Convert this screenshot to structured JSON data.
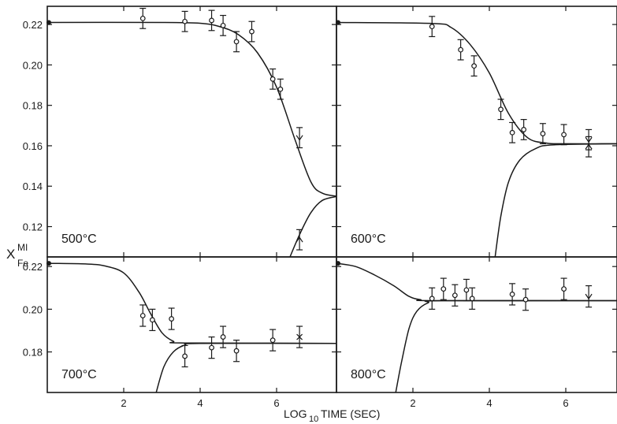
{
  "chart_data": {
    "type": "scatter",
    "xlabel": "LOG",
    "xlabel_sub": "10",
    "xlabel_rest": "TIME (SEC)",
    "ylabel": "X",
    "ylabel_sup": "MI",
    "ylabel_sub": "Fe",
    "xlim": [
      0,
      7.6
    ],
    "x_ticks": [
      2,
      4,
      6
    ],
    "x_tick_labels": [
      "2",
      "4",
      "6"
    ],
    "panels": [
      {
        "label": "500°C",
        "ylim": [
          0.105,
          0.229
        ],
        "y_ticks": [
          0.22,
          0.2,
          0.18,
          0.16,
          0.14,
          0.12
        ],
        "y_tick_labels": [
          "0.22",
          "0.20",
          "0.18",
          "0.16",
          "0.14",
          "0.12"
        ],
        "start_value": 0.221,
        "equilibrium": 0.135,
        "decay_curve": [
          [
            0,
            0.221
          ],
          [
            3,
            0.221
          ],
          [
            4,
            0.2206
          ],
          [
            4.5,
            0.219
          ],
          [
            5,
            0.215
          ],
          [
            5.5,
            0.206
          ],
          [
            6,
            0.189
          ],
          [
            6.5,
            0.162
          ],
          [
            6.9,
            0.142
          ],
          [
            7.2,
            0.1365
          ],
          [
            7.6,
            0.135
          ]
        ],
        "rise_curve": [
          [
            6.35,
            0.105
          ],
          [
            6.6,
            0.116
          ],
          [
            6.9,
            0.127
          ],
          [
            7.2,
            0.133
          ],
          [
            7.6,
            0.135
          ]
        ],
        "points": [
          {
            "x": 2.5,
            "y": 0.223,
            "err": 0.005,
            "marker": "circle"
          },
          {
            "x": 3.6,
            "y": 0.2215,
            "err": 0.005,
            "marker": "circle"
          },
          {
            "x": 4.3,
            "y": 0.222,
            "err": 0.005,
            "marker": "circle"
          },
          {
            "x": 4.6,
            "y": 0.2195,
            "err": 0.005,
            "marker": "circle"
          },
          {
            "x": 4.95,
            "y": 0.2115,
            "err": 0.005,
            "marker": "circle"
          },
          {
            "x": 5.35,
            "y": 0.2165,
            "err": 0.005,
            "marker": "circle"
          },
          {
            "x": 5.9,
            "y": 0.193,
            "err": 0.005,
            "marker": "circle"
          },
          {
            "x": 6.1,
            "y": 0.188,
            "err": 0.005,
            "marker": "circle"
          },
          {
            "x": 6.6,
            "y": 0.164,
            "err": 0.005,
            "marker": "down"
          },
          {
            "x": 6.6,
            "y": 0.1135,
            "err": 0.005,
            "marker": "up"
          }
        ]
      },
      {
        "label": "600°C",
        "ylim": [
          0.105,
          0.229
        ],
        "y_ticks": [
          0.22,
          0.2,
          0.18,
          0.16,
          0.14,
          0.12
        ],
        "y_tick_labels": [],
        "start_value": 0.221,
        "equilibrium": 0.161,
        "decay_curve": [
          [
            0,
            0.221
          ],
          [
            2.5,
            0.2205
          ],
          [
            3,
            0.2185
          ],
          [
            3.5,
            0.21
          ],
          [
            4,
            0.196
          ],
          [
            4.5,
            0.176
          ],
          [
            5,
            0.164
          ],
          [
            5.5,
            0.1613
          ],
          [
            6,
            0.161
          ],
          [
            7.6,
            0.161
          ]
        ],
        "rise_curve": [
          [
            4.15,
            0.105
          ],
          [
            4.3,
            0.125
          ],
          [
            4.5,
            0.142
          ],
          [
            4.8,
            0.153
          ],
          [
            5.2,
            0.1585
          ],
          [
            5.7,
            0.1605
          ],
          [
            7.6,
            0.161
          ]
        ],
        "points": [
          {
            "x": 2.5,
            "y": 0.219,
            "err": 0.005,
            "marker": "circle"
          },
          {
            "x": 3.25,
            "y": 0.2075,
            "err": 0.005,
            "marker": "circle"
          },
          {
            "x": 3.6,
            "y": 0.1995,
            "err": 0.005,
            "marker": "circle"
          },
          {
            "x": 4.3,
            "y": 0.178,
            "err": 0.005,
            "marker": "circle"
          },
          {
            "x": 4.6,
            "y": 0.1665,
            "err": 0.005,
            "marker": "circle"
          },
          {
            "x": 4.9,
            "y": 0.168,
            "err": 0.005,
            "marker": "circle"
          },
          {
            "x": 5.4,
            "y": 0.166,
            "err": 0.005,
            "marker": "circle"
          },
          {
            "x": 5.95,
            "y": 0.1655,
            "err": 0.005,
            "marker": "circle"
          },
          {
            "x": 6.6,
            "y": 0.163,
            "err": 0.005,
            "marker": "down"
          },
          {
            "x": 6.6,
            "y": 0.1595,
            "err": 0.005,
            "marker": "up"
          }
        ]
      },
      {
        "label": "700°C",
        "ylim": [
          0.161,
          0.2245
        ],
        "y_ticks": [
          0.22,
          0.2,
          0.18
        ],
        "y_tick_labels": [
          "0.22",
          "0.20",
          "0.18"
        ],
        "start_value": 0.2215,
        "equilibrium": 0.184,
        "decay_curve": [
          [
            0,
            0.2215
          ],
          [
            1,
            0.2212
          ],
          [
            1.5,
            0.2203
          ],
          [
            2,
            0.217
          ],
          [
            2.4,
            0.208
          ],
          [
            2.7,
            0.198
          ],
          [
            3,
            0.189
          ],
          [
            3.3,
            0.185
          ],
          [
            3.6,
            0.1842
          ],
          [
            7.6,
            0.184
          ]
        ],
        "rise_curve": [
          [
            2.85,
            0.161
          ],
          [
            3.05,
            0.173
          ],
          [
            3.3,
            0.18
          ],
          [
            3.6,
            0.1832
          ],
          [
            4,
            0.184
          ],
          [
            7.6,
            0.184
          ]
        ],
        "points": [
          {
            "x": 2.5,
            "y": 0.197,
            "err": 0.005,
            "marker": "circle"
          },
          {
            "x": 2.75,
            "y": 0.195,
            "err": 0.005,
            "marker": "circle"
          },
          {
            "x": 3.25,
            "y": 0.1955,
            "err": 0.005,
            "marker": "circle"
          },
          {
            "x": 3.6,
            "y": 0.178,
            "err": 0.005,
            "marker": "circle"
          },
          {
            "x": 4.3,
            "y": 0.182,
            "err": 0.005,
            "marker": "circle"
          },
          {
            "x": 4.6,
            "y": 0.187,
            "err": 0.005,
            "marker": "circle"
          },
          {
            "x": 4.95,
            "y": 0.1805,
            "err": 0.005,
            "marker": "circle"
          },
          {
            "x": 5.9,
            "y": 0.1855,
            "err": 0.005,
            "marker": "circle"
          },
          {
            "x": 6.6,
            "y": 0.187,
            "err": 0.005,
            "marker": "cross"
          }
        ]
      },
      {
        "label": "800°C",
        "ylim": [
          0.161,
          0.2245
        ],
        "y_ticks": [
          0.22,
          0.2,
          0.18
        ],
        "y_tick_labels": [],
        "start_value": 0.2215,
        "equilibrium": 0.204,
        "decay_curve": [
          [
            0,
            0.2215
          ],
          [
            0.5,
            0.22
          ],
          [
            1,
            0.216
          ],
          [
            1.5,
            0.211
          ],
          [
            1.9,
            0.206
          ],
          [
            2.2,
            0.2045
          ],
          [
            2.6,
            0.204
          ],
          [
            7.6,
            0.204
          ]
        ],
        "rise_curve": [
          [
            1.55,
            0.161
          ],
          [
            1.7,
            0.175
          ],
          [
            1.9,
            0.191
          ],
          [
            2.1,
            0.199
          ],
          [
            2.4,
            0.203
          ],
          [
            2.8,
            0.204
          ],
          [
            7.6,
            0.204
          ]
        ],
        "points": [
          {
            "x": 2.5,
            "y": 0.205,
            "err": 0.005,
            "marker": "circle"
          },
          {
            "x": 2.8,
            "y": 0.2095,
            "err": 0.005,
            "marker": "circle"
          },
          {
            "x": 3.1,
            "y": 0.2065,
            "err": 0.005,
            "marker": "circle"
          },
          {
            "x": 3.4,
            "y": 0.209,
            "err": 0.005,
            "marker": "circle"
          },
          {
            "x": 3.55,
            "y": 0.205,
            "err": 0.005,
            "marker": "circle"
          },
          {
            "x": 4.6,
            "y": 0.207,
            "err": 0.005,
            "marker": "circle"
          },
          {
            "x": 4.95,
            "y": 0.2045,
            "err": 0.005,
            "marker": "circle"
          },
          {
            "x": 5.95,
            "y": 0.2095,
            "err": 0.005,
            "marker": "circle"
          },
          {
            "x": 6.6,
            "y": 0.206,
            "err": 0.005,
            "marker": "down"
          }
        ]
      }
    ]
  }
}
